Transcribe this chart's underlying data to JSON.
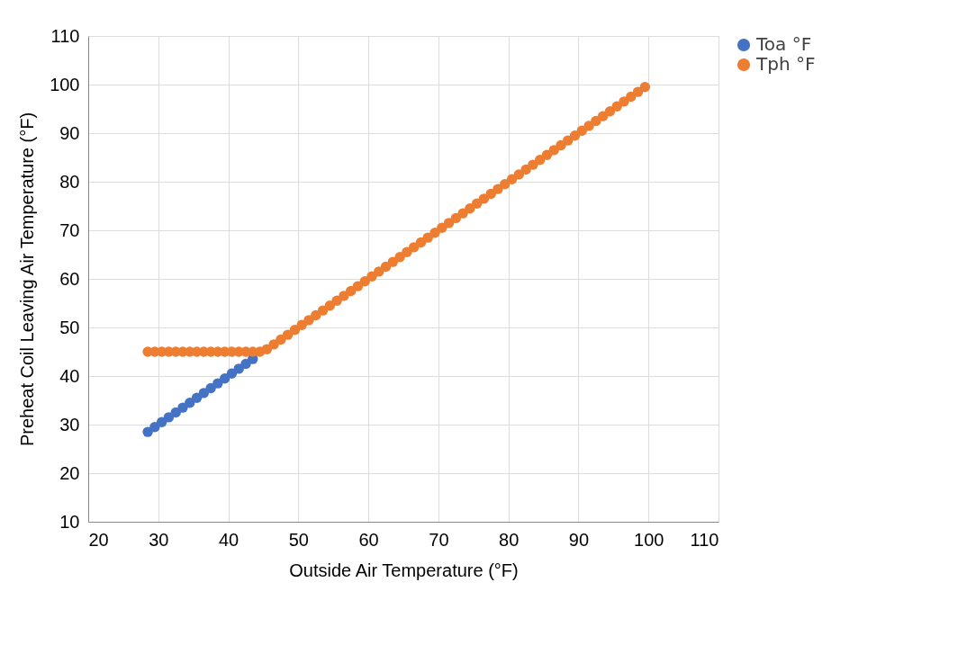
{
  "chart_data": {
    "type": "scatter",
    "xlabel": "Outside Air Temperature (°F)",
    "ylabel": "Preheat Coil Leaving Air Temperature (°F)",
    "x": [
      28.5,
      29.5,
      30.5,
      31.5,
      32.5,
      33.5,
      34.5,
      35.5,
      36.5,
      37.5,
      38.5,
      39.5,
      40.5,
      41.5,
      42.5,
      43.5,
      44.5,
      45.5,
      46.5,
      47.5,
      48.5,
      49.5,
      50.5,
      51.5,
      52.5,
      53.5,
      54.5,
      55.5,
      56.5,
      57.5,
      58.5,
      59.5,
      60.5,
      61.5,
      62.5,
      63.5,
      64.5,
      65.5,
      66.5,
      67.5,
      68.5,
      69.5,
      70.5,
      71.5,
      72.5,
      73.5,
      74.5,
      75.5,
      76.5,
      77.5,
      78.5,
      79.5,
      80.5,
      81.5,
      82.5,
      83.5,
      84.5,
      85.5,
      86.5,
      87.5,
      88.5,
      89.5,
      90.5,
      91.5,
      92.5,
      93.5,
      94.5,
      95.5,
      96.5,
      97.5,
      98.5,
      99.5
    ],
    "series": [
      {
        "name": "Toa °F",
        "color": "#4472c4",
        "values": [
          28.5,
          29.5,
          30.5,
          31.5,
          32.5,
          33.5,
          34.5,
          35.5,
          36.5,
          37.5,
          38.5,
          39.5,
          40.5,
          41.5,
          42.5,
          43.5,
          null,
          null,
          null,
          null,
          null,
          null,
          null,
          null,
          null,
          null,
          null,
          null,
          null,
          null,
          null,
          null,
          null,
          null,
          null,
          null,
          null,
          null,
          null,
          null,
          null,
          null,
          null,
          null,
          null,
          null,
          null,
          null,
          null,
          null,
          null,
          null,
          null,
          null,
          null,
          null,
          null,
          null,
          null,
          null,
          null,
          null,
          null,
          null,
          null,
          null,
          null,
          null,
          null,
          null,
          null,
          null
        ]
      },
      {
        "name": "Tph °F",
        "color": "#ed7d31",
        "values": [
          45,
          45,
          45,
          45,
          45,
          45,
          45,
          45,
          45,
          45,
          45,
          45,
          45,
          45,
          45,
          45,
          45,
          45.5,
          46.5,
          47.5,
          48.5,
          49.5,
          50.5,
          51.5,
          52.5,
          53.5,
          54.5,
          55.5,
          56.5,
          57.5,
          58.5,
          59.5,
          60.5,
          61.5,
          62.5,
          63.5,
          64.5,
          65.5,
          66.5,
          67.5,
          68.5,
          69.5,
          70.5,
          71.5,
          72.5,
          73.5,
          74.5,
          75.5,
          76.5,
          77.5,
          78.5,
          79.5,
          80.5,
          81.5,
          82.5,
          83.5,
          84.5,
          85.5,
          86.5,
          87.5,
          88.5,
          89.5,
          90.5,
          91.5,
          92.5,
          93.5,
          94.5,
          95.5,
          96.5,
          97.5,
          98.5,
          99.5
        ]
      }
    ],
    "xlim": [
      20,
      110
    ],
    "xticks": [
      20,
      30,
      40,
      50,
      60,
      70,
      80,
      90,
      100,
      110
    ],
    "ylim": [
      10,
      110
    ],
    "yticks": [
      10,
      20,
      30,
      40,
      50,
      60,
      70,
      80,
      90,
      100,
      110
    ],
    "grid": true,
    "legend": "right",
    "marker": "circle"
  }
}
